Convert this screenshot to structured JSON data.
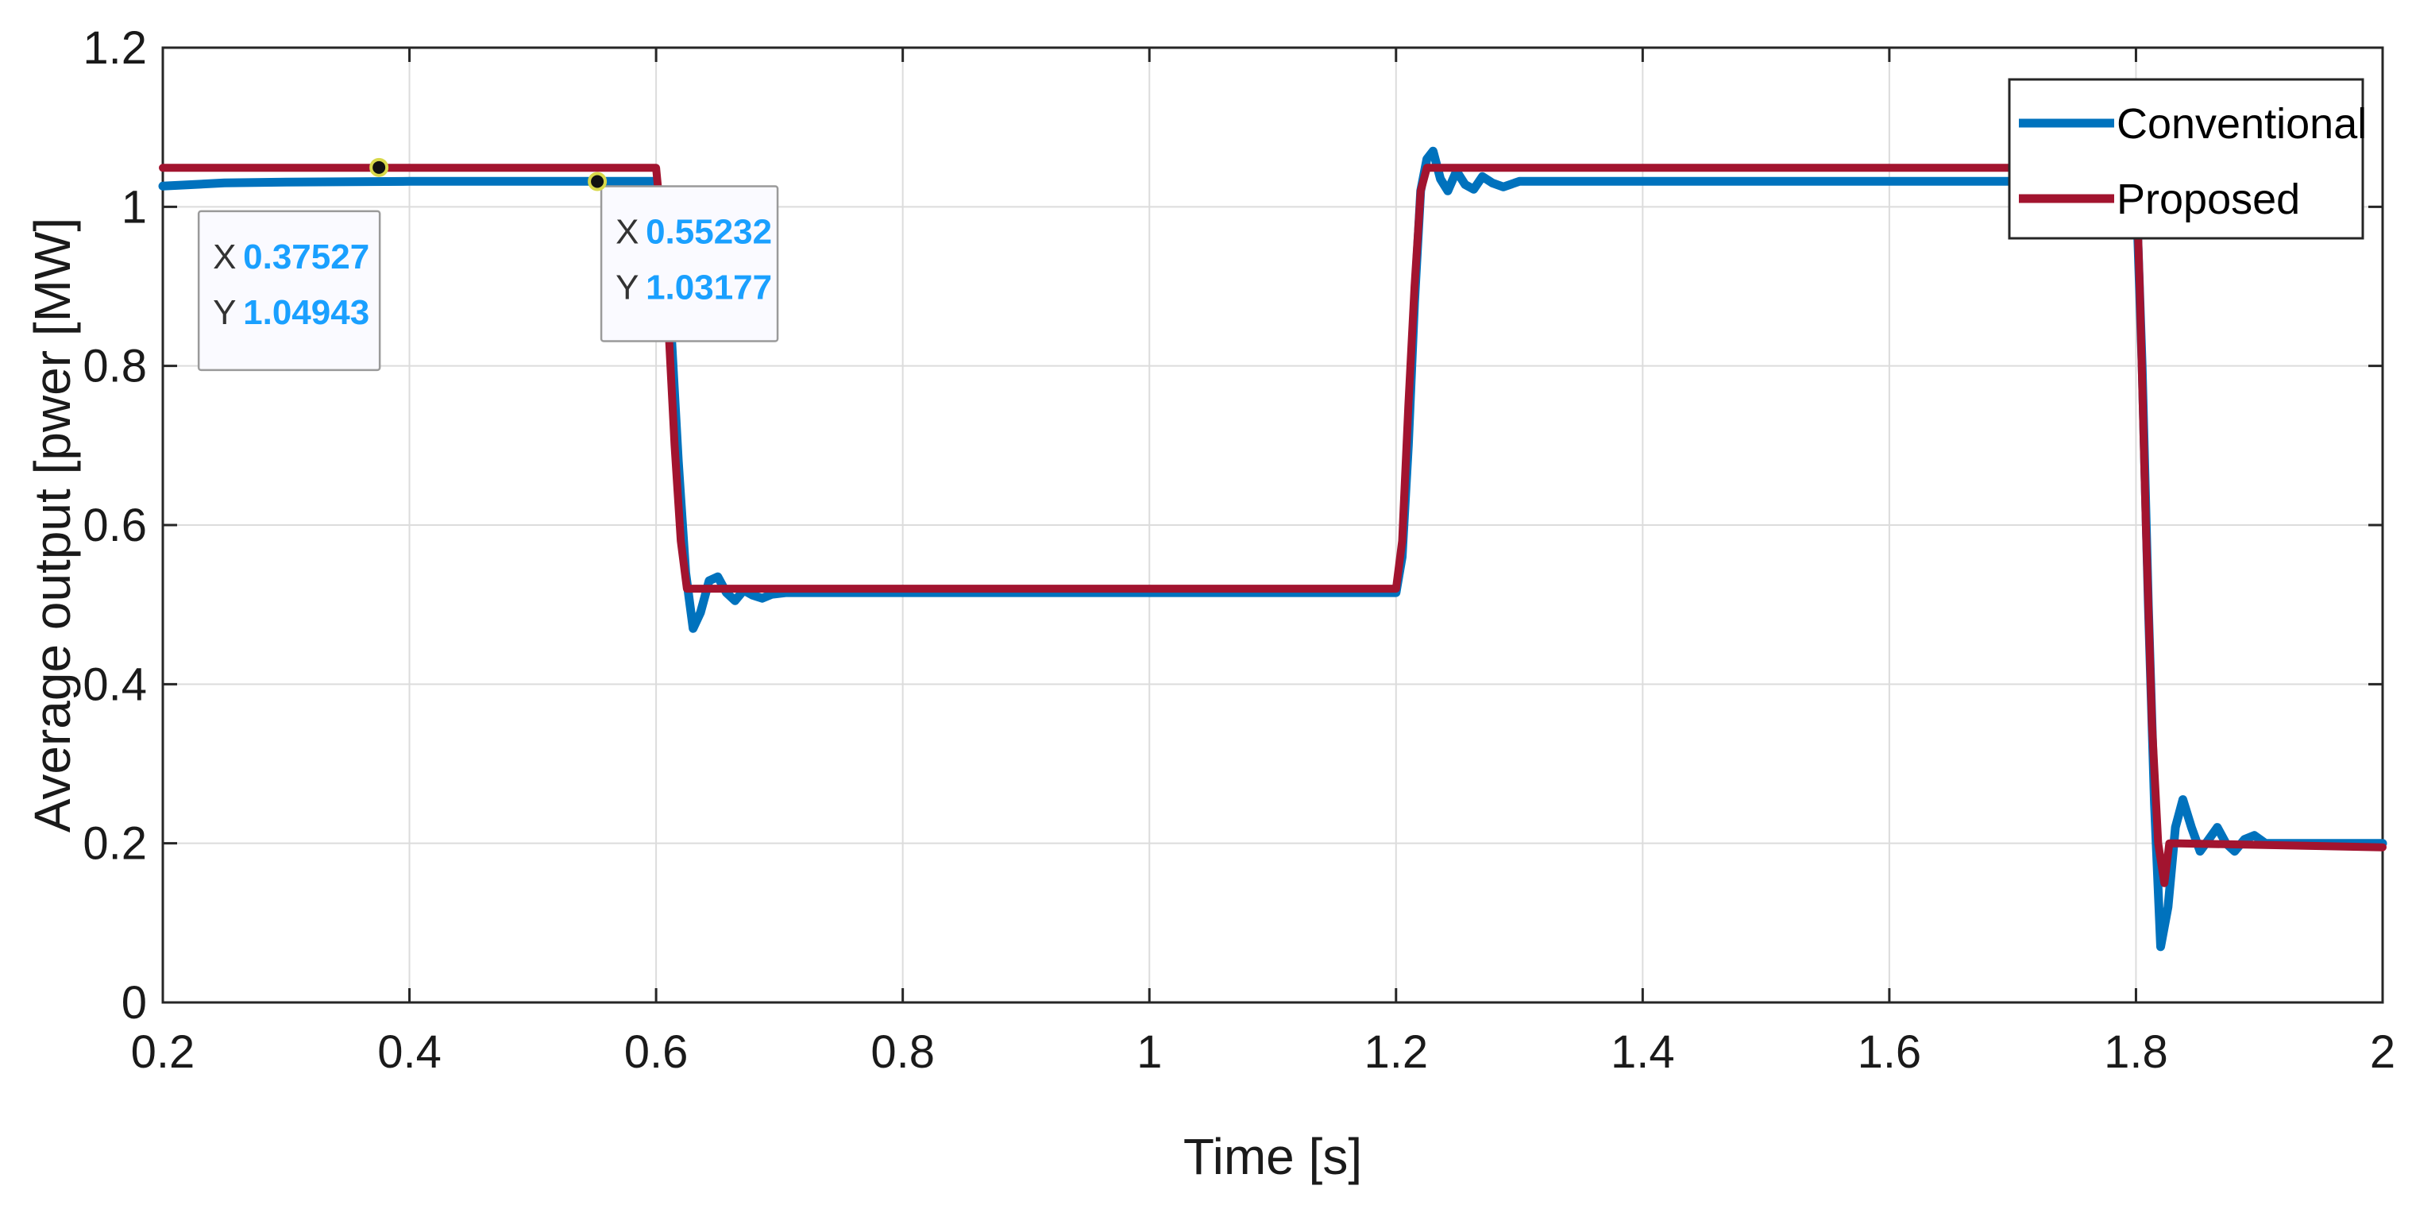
{
  "chart_data": {
    "type": "line",
    "xlabel": "Time [s]",
    "ylabel": "Average output [pwer [MW]",
    "xlim": [
      0.2,
      2
    ],
    "ylim": [
      0,
      1.2
    ],
    "xticks": [
      "0.2",
      "0.4",
      "0.6",
      "0.8",
      "1",
      "1.2",
      "1.4",
      "1.6",
      "1.8",
      "2"
    ],
    "yticks": [
      "0",
      "0.2",
      "0.4",
      "0.6",
      "0.8",
      "1",
      "1.2"
    ],
    "grid": true,
    "legend_position": "top-right",
    "series": [
      {
        "name": "Conventional",
        "color": "#0072BD",
        "x": [
          0.2,
          0.25,
          0.3,
          0.4,
          0.5,
          0.6,
          0.605,
          0.612,
          0.618,
          0.624,
          0.63,
          0.636,
          0.643,
          0.65,
          0.657,
          0.664,
          0.671,
          0.678,
          0.686,
          0.694,
          0.705,
          0.72,
          0.8,
          1.0,
          1.2,
          1.205,
          1.21,
          1.215,
          1.22,
          1.225,
          1.23,
          1.236,
          1.242,
          1.249,
          1.256,
          1.263,
          1.27,
          1.278,
          1.287,
          1.3,
          1.4,
          1.5,
          1.6,
          1.7,
          1.8,
          1.805,
          1.81,
          1.815,
          1.82,
          1.826,
          1.832,
          1.838,
          1.845,
          1.852,
          1.859,
          1.866,
          1.873,
          1.88,
          1.888,
          1.896,
          1.905,
          1.92,
          2.0
        ],
        "y": [
          1.026,
          1.03,
          1.031,
          1.032,
          1.032,
          1.032,
          1.0,
          0.85,
          0.68,
          0.54,
          0.47,
          0.49,
          0.53,
          0.535,
          0.515,
          0.505,
          0.518,
          0.512,
          0.508,
          0.513,
          0.515,
          0.515,
          0.515,
          0.515,
          0.515,
          0.56,
          0.7,
          0.88,
          1.02,
          1.06,
          1.07,
          1.035,
          1.02,
          1.045,
          1.028,
          1.022,
          1.038,
          1.03,
          1.025,
          1.032,
          1.032,
          1.032,
          1.032,
          1.032,
          1.03,
          0.8,
          0.5,
          0.25,
          0.07,
          0.12,
          0.22,
          0.255,
          0.22,
          0.19,
          0.205,
          0.22,
          0.2,
          0.19,
          0.205,
          0.21,
          0.2,
          0.2,
          0.2
        ]
      },
      {
        "name": "Proposed",
        "color": "#A2142F",
        "x": [
          0.2,
          0.6,
          0.603,
          0.61,
          0.615,
          0.62,
          0.625,
          0.63,
          0.64,
          1.2,
          1.205,
          1.21,
          1.215,
          1.22,
          1.225,
          1.23,
          1.24,
          1.8,
          1.803,
          1.808,
          1.813,
          1.818,
          1.823,
          1.827,
          1.835,
          2.0
        ],
        "y": [
          1.049,
          1.049,
          1.0,
          0.85,
          0.7,
          0.58,
          0.52,
          0.52,
          0.52,
          0.52,
          0.58,
          0.75,
          0.9,
          1.02,
          1.049,
          1.049,
          1.049,
          1.049,
          0.9,
          0.6,
          0.35,
          0.2,
          0.15,
          0.2,
          0.2,
          0.195
        ]
      }
    ],
    "datatips": [
      {
        "x_label": "X",
        "x_value": "0.37527",
        "y_label": "Y",
        "y_value": "1.04943",
        "x": 0.37527,
        "y": 1.04943
      },
      {
        "x_label": "X",
        "x_value": "0.55232",
        "y_label": "Y",
        "y_value": "1.03177",
        "x": 0.55232,
        "y": 1.03177
      }
    ]
  }
}
